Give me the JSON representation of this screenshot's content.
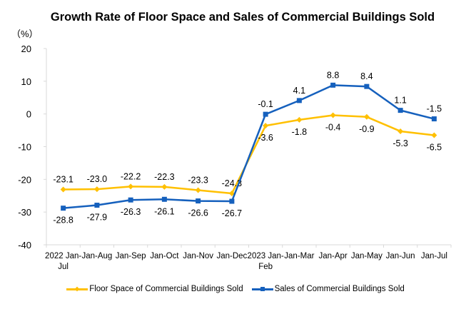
{
  "chart_data": {
    "type": "line",
    "title": "Growth Rate of Floor Space and Sales of Commercial Buildings Sold",
    "unit_label": "（%）",
    "xlabel": "",
    "ylabel": "%",
    "ylim": [
      -40,
      20
    ],
    "yticks": [
      20,
      10,
      0,
      -10,
      -20,
      -30,
      -40
    ],
    "grid": false,
    "legend_position": "bottom",
    "categories": [
      [
        "2022 Jan-",
        "Jul"
      ],
      [
        "Jan-Aug"
      ],
      [
        "Jan-Sep"
      ],
      [
        "Jan-Oct"
      ],
      [
        "Jan-Nov"
      ],
      [
        "Jan-Dec"
      ],
      [
        "2023 Jan-",
        "Feb"
      ],
      [
        "Jan-Mar"
      ],
      [
        "Jan-Apr"
      ],
      [
        "Jan-May"
      ],
      [
        "Jan-Jun"
      ],
      [
        "Jan-Jul"
      ]
    ],
    "series": [
      {
        "name": "Floor Space of Commercial Buildings Sold",
        "color": "#FFC000",
        "marker": "diamond",
        "values": [
          -23.1,
          -23.0,
          -22.2,
          -22.3,
          -23.3,
          -24.3,
          -3.6,
          -1.8,
          -0.4,
          -0.9,
          -5.3,
          -6.5
        ],
        "label_positions": [
          "above",
          "above",
          "above",
          "above",
          "above",
          "above",
          "below",
          "below",
          "below",
          "below",
          "below",
          "below"
        ]
      },
      {
        "name": "Sales of Commercial Buildings Sold",
        "color": "#1560BD",
        "marker": "square",
        "values": [
          -28.8,
          -27.9,
          -26.3,
          -26.1,
          -26.6,
          -26.7,
          -0.1,
          4.1,
          8.8,
          8.4,
          1.1,
          -1.5
        ],
        "label_positions": [
          "below",
          "below",
          "below",
          "below",
          "below",
          "below",
          "above",
          "above",
          "above",
          "above",
          "above",
          "above"
        ]
      }
    ]
  }
}
